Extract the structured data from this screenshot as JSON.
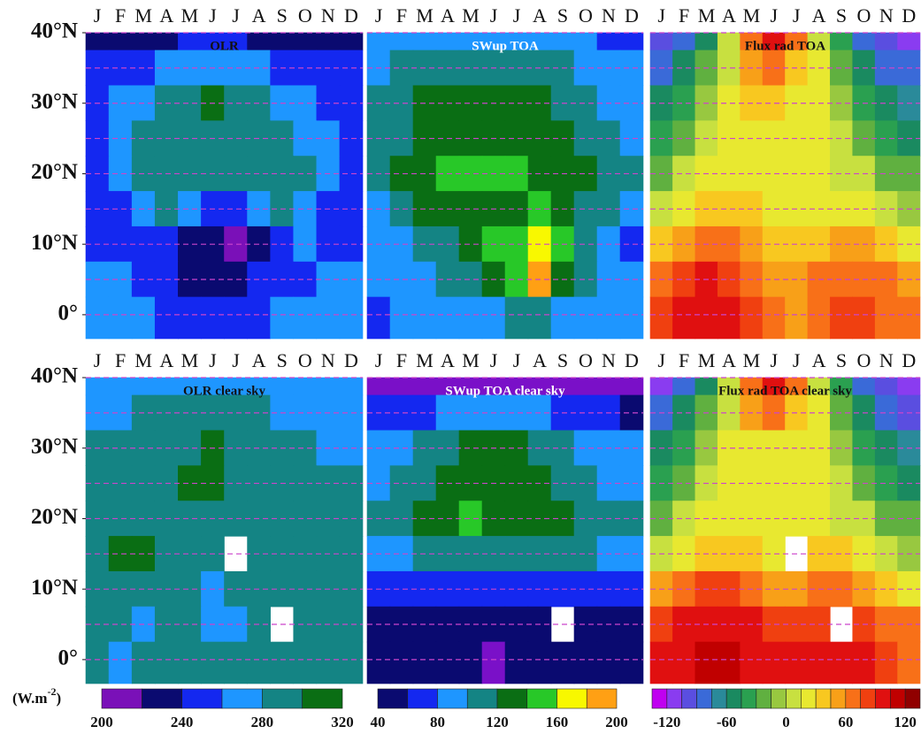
{
  "chart_data": {
    "type": "contour-panels",
    "months": [
      "J",
      "F",
      "M",
      "A",
      "M",
      "J",
      "J",
      "A",
      "S",
      "O",
      "N",
      "D"
    ],
    "lat": [
      40,
      35,
      30,
      25,
      20,
      15,
      10,
      5,
      0
    ],
    "ylim": [
      -3.4,
      40
    ],
    "yticks": [
      {
        "value": 40,
        "label": "40°N"
      },
      {
        "value": 30,
        "label": "30°N"
      },
      {
        "value": 20,
        "label": "20°N"
      },
      {
        "value": 10,
        "label": "10°N"
      },
      {
        "value": 0,
        "label": "0°"
      }
    ],
    "grid_lat": [
      40,
      35,
      30,
      25,
      20,
      15,
      10,
      5,
      0
    ],
    "grid_color": "#cc44cc",
    "unit": "(W.m",
    "unit_sup": "-2",
    "unit_end": ")",
    "colorbars": [
      {
        "levels": [
          200,
          220,
          240,
          260,
          280,
          300,
          320
        ],
        "colors": [
          "#7a10b8",
          "#0a0a70",
          "#1428f0",
          "#1e96ff",
          "#148484",
          "#0a6e14"
        ],
        "ticks": [
          200,
          240,
          280,
          320
        ]
      },
      {
        "levels": [
          40,
          60,
          80,
          100,
          120,
          140,
          160,
          180,
          200
        ],
        "colors": [
          "#0a0a70",
          "#1428f0",
          "#1e96ff",
          "#148484",
          "#0a6e14",
          "#28c828",
          "#f8f800",
          "#ffa014"
        ],
        "ticks": [
          40,
          80,
          120,
          160,
          200
        ],
        "under_color": "#7a10c8"
      },
      {
        "levels": [
          -135,
          -120,
          -105,
          -90,
          -75,
          -60,
          -45,
          -30,
          -15,
          0,
          15,
          30,
          45,
          60,
          75,
          90,
          105,
          120,
          135
        ],
        "colors": [
          "#c000f0",
          "#8a3cf0",
          "#5a4ee0",
          "#3a6ad8",
          "#2a8a9a",
          "#1a8a60",
          "#2aa050",
          "#60b040",
          "#98c840",
          "#c8e040",
          "#e8e830",
          "#f8c820",
          "#f8a018",
          "#f87018",
          "#f04010",
          "#e01010",
          "#c00000",
          "#900000"
        ],
        "ticks": [
          -120,
          -60,
          0,
          60,
          120
        ]
      }
    ],
    "panels": [
      {
        "title": "OLR",
        "title_color": "#111111",
        "colorbar": 0,
        "values": [
          [
            230,
            230,
            230,
            230,
            250,
            250,
            250,
            230,
            230,
            230,
            230,
            230
          ],
          [
            250,
            250,
            250,
            270,
            270,
            270,
            270,
            270,
            250,
            250,
            250,
            250
          ],
          [
            250,
            270,
            270,
            290,
            290,
            310,
            290,
            290,
            270,
            270,
            250,
            250
          ],
          [
            250,
            270,
            290,
            290,
            290,
            290,
            290,
            290,
            290,
            270,
            270,
            250
          ],
          [
            250,
            270,
            290,
            290,
            290,
            290,
            290,
            290,
            290,
            290,
            270,
            250
          ],
          [
            250,
            250,
            270,
            290,
            270,
            250,
            250,
            270,
            290,
            270,
            250,
            250
          ],
          [
            250,
            250,
            250,
            250,
            230,
            230,
            210,
            230,
            250,
            270,
            250,
            250
          ],
          [
            270,
            270,
            250,
            250,
            230,
            230,
            230,
            250,
            250,
            250,
            270,
            270
          ],
          [
            270,
            270,
            270,
            250,
            250,
            250,
            250,
            250,
            270,
            270,
            270,
            270
          ]
        ]
      },
      {
        "title": "SWup TOA",
        "title_color": "#ffffff",
        "colorbar": 1,
        "values": [
          [
            90,
            90,
            90,
            90,
            90,
            90,
            90,
            90,
            90,
            90,
            70,
            70
          ],
          [
            90,
            110,
            110,
            110,
            110,
            110,
            110,
            110,
            110,
            90,
            90,
            90
          ],
          [
            110,
            110,
            130,
            130,
            130,
            130,
            130,
            130,
            110,
            110,
            90,
            90
          ],
          [
            110,
            110,
            130,
            130,
            130,
            130,
            130,
            130,
            130,
            110,
            110,
            90
          ],
          [
            110,
            130,
            130,
            150,
            150,
            150,
            150,
            130,
            130,
            130,
            110,
            110
          ],
          [
            90,
            110,
            130,
            130,
            130,
            130,
            130,
            150,
            130,
            110,
            110,
            90
          ],
          [
            90,
            90,
            110,
            110,
            130,
            150,
            150,
            170,
            150,
            110,
            90,
            70
          ],
          [
            90,
            90,
            90,
            110,
            110,
            130,
            150,
            190,
            130,
            110,
            90,
            90
          ],
          [
            70,
            90,
            90,
            90,
            90,
            90,
            110,
            110,
            90,
            90,
            90,
            90
          ]
        ]
      },
      {
        "title": "Flux rad TOA",
        "title_color": "#111111",
        "colorbar": 2,
        "values": [
          [
            -100,
            -80,
            -50,
            0,
            60,
            90,
            60,
            10,
            -40,
            -80,
            -100,
            -110
          ],
          [
            -80,
            -60,
            -30,
            10,
            45,
            60,
            40,
            15,
            -20,
            -60,
            -80,
            -90
          ],
          [
            -60,
            -40,
            -10,
            15,
            30,
            30,
            25,
            15,
            -10,
            -40,
            -60,
            -70
          ],
          [
            -40,
            -20,
            0,
            20,
            25,
            25,
            20,
            15,
            0,
            -20,
            -40,
            -50
          ],
          [
            -20,
            0,
            15,
            25,
            25,
            20,
            15,
            15,
            10,
            0,
            -20,
            -30
          ],
          [
            0,
            15,
            30,
            40,
            35,
            25,
            20,
            25,
            25,
            15,
            0,
            -10
          ],
          [
            30,
            50,
            70,
            70,
            55,
            40,
            30,
            40,
            50,
            45,
            30,
            20
          ],
          [
            60,
            80,
            90,
            85,
            70,
            55,
            45,
            60,
            70,
            70,
            60,
            50
          ],
          [
            80,
            100,
            100,
            90,
            75,
            60,
            55,
            65,
            80,
            80,
            70,
            60
          ]
        ]
      },
      {
        "title": "OLR clear sky",
        "title_color": "#111111",
        "colorbar": 0,
        "values": [
          [
            270,
            270,
            270,
            270,
            270,
            270,
            270,
            270,
            270,
            270,
            270,
            270
          ],
          [
            270,
            270,
            290,
            290,
            290,
            290,
            290,
            290,
            270,
            270,
            270,
            270
          ],
          [
            290,
            290,
            290,
            290,
            290,
            310,
            290,
            290,
            290,
            290,
            270,
            270
          ],
          [
            290,
            290,
            290,
            290,
            310,
            310,
            290,
            290,
            290,
            290,
            290,
            290
          ],
          [
            290,
            290,
            290,
            290,
            290,
            290,
            290,
            290,
            290,
            290,
            290,
            290
          ],
          [
            290,
            310,
            310,
            290,
            290,
            290,
            null,
            290,
            290,
            290,
            290,
            290
          ],
          [
            290,
            290,
            290,
            290,
            290,
            270,
            290,
            290,
            290,
            290,
            290,
            290
          ],
          [
            290,
            290,
            270,
            290,
            290,
            270,
            270,
            290,
            null,
            290,
            290,
            290
          ],
          [
            290,
            270,
            290,
            290,
            290,
            290,
            290,
            290,
            290,
            290,
            290,
            290
          ]
        ]
      },
      {
        "title": "SWup TOA clear sky",
        "title_color": "#ffffff",
        "colorbar": 1,
        "values": [
          [
            30,
            30,
            30,
            30,
            30,
            30,
            30,
            30,
            30,
            30,
            30,
            30
          ],
          [
            70,
            70,
            70,
            90,
            90,
            90,
            90,
            90,
            70,
            70,
            70,
            50
          ],
          [
            90,
            90,
            110,
            110,
            130,
            130,
            130,
            110,
            110,
            90,
            90,
            90
          ],
          [
            90,
            110,
            110,
            130,
            130,
            130,
            130,
            130,
            110,
            110,
            90,
            90
          ],
          [
            110,
            110,
            130,
            130,
            150,
            130,
            130,
            130,
            130,
            110,
            110,
            110
          ],
          [
            90,
            90,
            110,
            110,
            110,
            110,
            110,
            110,
            110,
            110,
            90,
            90
          ],
          [
            70,
            70,
            70,
            70,
            70,
            70,
            70,
            70,
            70,
            70,
            70,
            70
          ],
          [
            50,
            50,
            50,
            50,
            50,
            50,
            50,
            50,
            null,
            50,
            50,
            50
          ],
          [
            50,
            50,
            50,
            50,
            50,
            30,
            50,
            50,
            50,
            50,
            50,
            50
          ]
        ]
      },
      {
        "title": "Flux rad TOA clear sky",
        "title_color": "#111111",
        "colorbar": 2,
        "values": [
          [
            -110,
            -90,
            -50,
            0,
            60,
            95,
            60,
            10,
            -40,
            -80,
            -100,
            -110
          ],
          [
            -90,
            -60,
            -30,
            10,
            45,
            60,
            40,
            15,
            -20,
            -60,
            -80,
            -100
          ],
          [
            -60,
            -40,
            -10,
            15,
            25,
            25,
            20,
            15,
            -10,
            -40,
            -60,
            -70
          ],
          [
            -40,
            -20,
            0,
            20,
            25,
            25,
            20,
            15,
            0,
            -20,
            -40,
            -50
          ],
          [
            -20,
            0,
            15,
            25,
            25,
            25,
            20,
            20,
            10,
            0,
            -20,
            -30
          ],
          [
            10,
            25,
            35,
            40,
            35,
            25,
            null,
            35,
            30,
            15,
            0,
            -10
          ],
          [
            45,
            60,
            75,
            75,
            65,
            55,
            55,
            60,
            60,
            45,
            30,
            20
          ],
          [
            75,
            90,
            100,
            100,
            90,
            80,
            75,
            80,
            null,
            80,
            70,
            60
          ],
          [
            90,
            100,
            110,
            110,
            100,
            90,
            90,
            90,
            100,
            95,
            80,
            70
          ]
        ]
      }
    ]
  }
}
